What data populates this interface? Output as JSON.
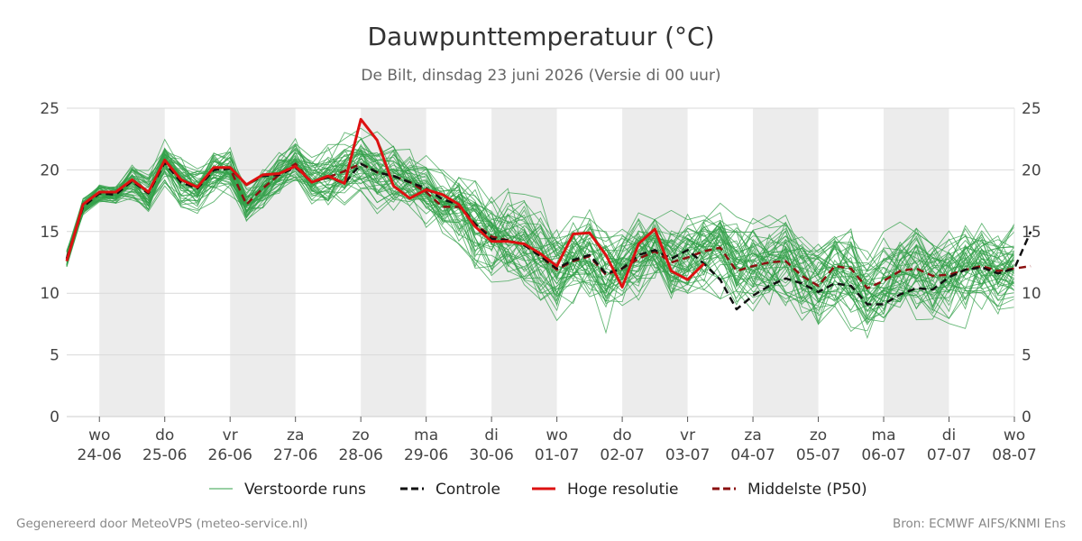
{
  "chart_data": {
    "type": "line",
    "title": "Dauwpunttemperatuur (°C)",
    "subtitle": "De Bilt, dinsdag 23 juni 2026 (Versie di 00 uur)",
    "ylim": [
      0,
      25
    ],
    "yticks": [
      0,
      5,
      10,
      15,
      20,
      25
    ],
    "x_start": "2026-06-23T12:00",
    "x_end": "2026-07-08T00:00",
    "x_step_hours": 6,
    "xticks": [
      {
        "date": "2026-06-24T00:00",
        "day": "wo",
        "label": "24-06"
      },
      {
        "date": "2026-06-25T00:00",
        "day": "do",
        "label": "25-06"
      },
      {
        "date": "2026-06-26T00:00",
        "day": "vr",
        "label": "26-06"
      },
      {
        "date": "2026-06-27T00:00",
        "day": "za",
        "label": "27-06"
      },
      {
        "date": "2026-06-28T00:00",
        "day": "zo",
        "label": "28-06"
      },
      {
        "date": "2026-06-29T00:00",
        "day": "ma",
        "label": "29-06"
      },
      {
        "date": "2026-06-30T00:00",
        "day": "di",
        "label": "30-06"
      },
      {
        "date": "2026-07-01T00:00",
        "day": "wo",
        "label": "01-07"
      },
      {
        "date": "2026-07-02T00:00",
        "day": "do",
        "label": "02-07"
      },
      {
        "date": "2026-07-03T00:00",
        "day": "vr",
        "label": "03-07"
      },
      {
        "date": "2026-07-04T00:00",
        "day": "za",
        "label": "04-07"
      },
      {
        "date": "2026-07-05T00:00",
        "day": "zo",
        "label": "05-07"
      },
      {
        "date": "2026-07-06T00:00",
        "day": "ma",
        "label": "06-07"
      },
      {
        "date": "2026-07-07T00:00",
        "day": "di",
        "label": "07-07"
      },
      {
        "date": "2026-07-08T00:00",
        "day": "wo",
        "label": "08-07"
      }
    ],
    "shaded_days": [
      "2026-06-24",
      "2026-06-26",
      "2026-06-28",
      "2026-06-30",
      "2026-07-02",
      "2026-07-04",
      "2026-07-06"
    ],
    "grid": true,
    "legend_position": "bottom",
    "series": [
      {
        "name": "Hoge resolutie",
        "color": "#dd1111",
        "style": "solid",
        "values": [
          12.6,
          17.2,
          18.2,
          18.2,
          19.2,
          18.2,
          20.8,
          19.2,
          18.6,
          20.2,
          20.2,
          18.8,
          19.6,
          19.7,
          20.3,
          19.0,
          19.5,
          18.9,
          24.1,
          22.4,
          18.7,
          17.7,
          18.4,
          18.0,
          17.2,
          15.4,
          14.2,
          14.2,
          14.0,
          13.2,
          12.2,
          14.8,
          14.9,
          13.1,
          10.5,
          14.0,
          15.2,
          11.8,
          11.1,
          12.4
        ]
      },
      {
        "name": "Controle",
        "color": "#111111",
        "style": "dashed",
        "values": [
          12.8,
          17.0,
          18.1,
          18.0,
          19.1,
          18.1,
          20.6,
          19.0,
          18.5,
          20.0,
          20.1,
          18.8,
          19.5,
          19.6,
          20.2,
          19.0,
          19.4,
          18.9,
          20.5,
          19.8,
          19.5,
          19.0,
          18.5,
          17.6,
          17.2,
          15.6,
          14.4,
          14.3,
          13.9,
          13.0,
          12.0,
          12.7,
          13.1,
          11.6,
          12.0,
          13.1,
          13.5,
          12.8,
          13.5,
          12.4,
          11.1,
          8.7,
          9.8,
          10.6,
          11.2,
          10.8,
          10.1,
          10.8,
          10.6,
          9.1,
          9.1,
          9.9,
          10.4,
          10.3,
          11.3,
          11.9,
          12.1,
          11.6,
          12.0,
          15.0
        ]
      },
      {
        "name": "Middelste (P50)",
        "color": "#8b1010",
        "style": "dashed",
        "values": [
          12.8,
          17.0,
          18.1,
          18.0,
          19.1,
          18.1,
          20.6,
          19.0,
          18.5,
          20.0,
          20.1,
          17.2,
          18.5,
          19.6,
          20.5,
          19.0,
          19.4,
          19.9,
          20.5,
          19.8,
          19.5,
          19.0,
          18.2,
          17.0,
          17.0,
          15.6,
          14.6,
          14.3,
          13.9,
          13.0,
          11.9,
          12.6,
          13.0,
          11.5,
          12.0,
          12.8,
          13.4,
          12.5,
          12.9,
          13.4,
          13.7,
          11.8,
          12.2,
          12.5,
          12.6,
          11.4,
          10.6,
          12.2,
          12.0,
          10.4,
          11.0,
          11.8,
          12.0,
          11.4,
          11.5,
          11.9,
          12.2,
          11.8,
          12.0,
          12.2
        ]
      }
    ],
    "ensemble": {
      "name": "Verstoorde runs",
      "color": "#33a04a",
      "count": 50
    }
  },
  "legend": [
    {
      "label": "Verstoorde runs",
      "color": "#33a04a",
      "style": "thin"
    },
    {
      "label": "Controle",
      "color": "#111111",
      "style": "dashed"
    },
    {
      "label": "Hoge resolutie",
      "color": "#dd1111",
      "style": "solid"
    },
    {
      "label": "Middelste (P50)",
      "color": "#8b1010",
      "style": "dashed"
    }
  ],
  "footer": {
    "left": "Gegenereerd door MeteoVPS (meteo-service.nl)",
    "right": "Bron: ECMWF AIFS/KNMI Ens"
  }
}
